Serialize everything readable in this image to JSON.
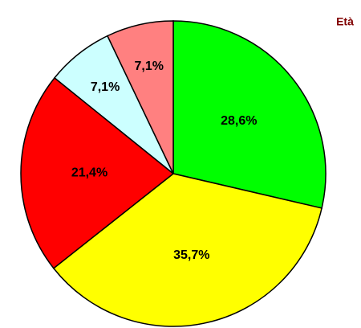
{
  "chart_data": {
    "type": "pie",
    "title": "Età",
    "values": [
      28.6,
      35.7,
      21.4,
      7.1,
      7.1
    ],
    "value_labels": [
      "28,6%",
      "35,7%",
      "21,4%",
      "7,1%",
      "7,1%"
    ],
    "colors": [
      "#00ff00",
      "#ffff00",
      "#ff0000",
      "#ccffff",
      "#ff8080"
    ]
  }
}
